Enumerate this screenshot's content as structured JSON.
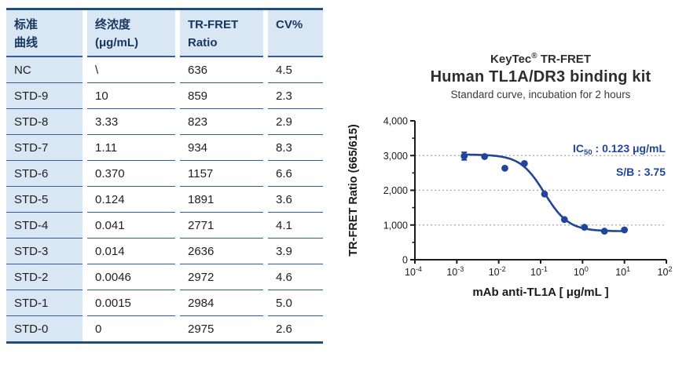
{
  "table": {
    "headers": [
      {
        "line1": "标准",
        "line2": "曲线"
      },
      {
        "line1": "终浓度",
        "line2": "(μg/mL)"
      },
      {
        "line1": "TR-FRET",
        "line2": "Ratio"
      },
      {
        "line1": "CV%",
        "line2": ""
      }
    ],
    "rows": [
      [
        "NC",
        "\\",
        "636",
        "4.5"
      ],
      [
        "STD-9",
        "10",
        "859",
        "2.3"
      ],
      [
        "STD-8",
        "3.33",
        "823",
        "2.9"
      ],
      [
        "STD-7",
        "1.11",
        "934",
        "8.3"
      ],
      [
        "STD-6",
        "0.370",
        "1157",
        "6.6"
      ],
      [
        "STD-5",
        "0.124",
        "1891",
        "3.6"
      ],
      [
        "STD-4",
        "0.041",
        "2771",
        "4.1"
      ],
      [
        "STD-3",
        "0.014",
        "2636",
        "3.9"
      ],
      [
        "STD-2",
        "0.0046",
        "2972",
        "4.6"
      ],
      [
        "STD-1",
        "0.0015",
        "2984",
        "5.0"
      ],
      [
        "STD-0",
        "0",
        "2975",
        "2.6"
      ]
    ]
  },
  "chart": {
    "title_brand": "KeyTec",
    "title_sup": "®",
    "title_rest": " TR-FRET",
    "subtitle": "Human TL1A/DR3 binding kit",
    "caption": "Standard curve,  incubation for 2 hours"
  },
  "chart_data": {
    "type": "scatter",
    "title": "KeyTec® TR-FRET",
    "subtitle": "Human TL1A/DR3 binding kit",
    "caption": "Standard curve,  incubation for 2 hours",
    "xlabel": "mAb anti-TL1A  [ μg/mL ]",
    "ylabel": "TR-FRET Ratio (665/615)",
    "xscale": "log",
    "xlim": [
      0.0001,
      100
    ],
    "ylim": [
      0,
      4000
    ],
    "xtick_exponents": [
      -4,
      -3,
      -2,
      -1,
      0,
      1,
      2
    ],
    "yticks": [
      0,
      1000,
      2000,
      3000,
      4000
    ],
    "ytick_labels": [
      "0",
      "1,000",
      "2,000",
      "3,000",
      "4,000"
    ],
    "yticks_minor": [
      500,
      1500,
      2500,
      3500
    ],
    "gridlines": [
      1000,
      2000,
      3000
    ],
    "grid_style": "dashed",
    "x": [
      0.0015,
      0.0046,
      0.014,
      0.041,
      0.124,
      0.37,
      1.11,
      3.33,
      10
    ],
    "y": [
      2984,
      2972,
      2636,
      2771,
      1891,
      1157,
      934,
      823,
      859
    ],
    "error_bar": {
      "x": 0.0015,
      "plus": 110,
      "minus": 110
    },
    "fit": {
      "model": "4PL",
      "top": 3030,
      "bottom": 820,
      "ic50": 0.123,
      "hill": 1.5,
      "x_range": [
        0.0013,
        10.5
      ]
    },
    "annotations": [
      {
        "prefix": "IC",
        "sub": "50",
        "text": " : 0.123 μg/mL"
      },
      {
        "prefix": "S/B",
        "sub": "",
        "text": " : 3.75"
      }
    ],
    "accent_color": "#20459B",
    "axis_color": "#1a1a1a",
    "grid_color": "#A9A9A9"
  }
}
